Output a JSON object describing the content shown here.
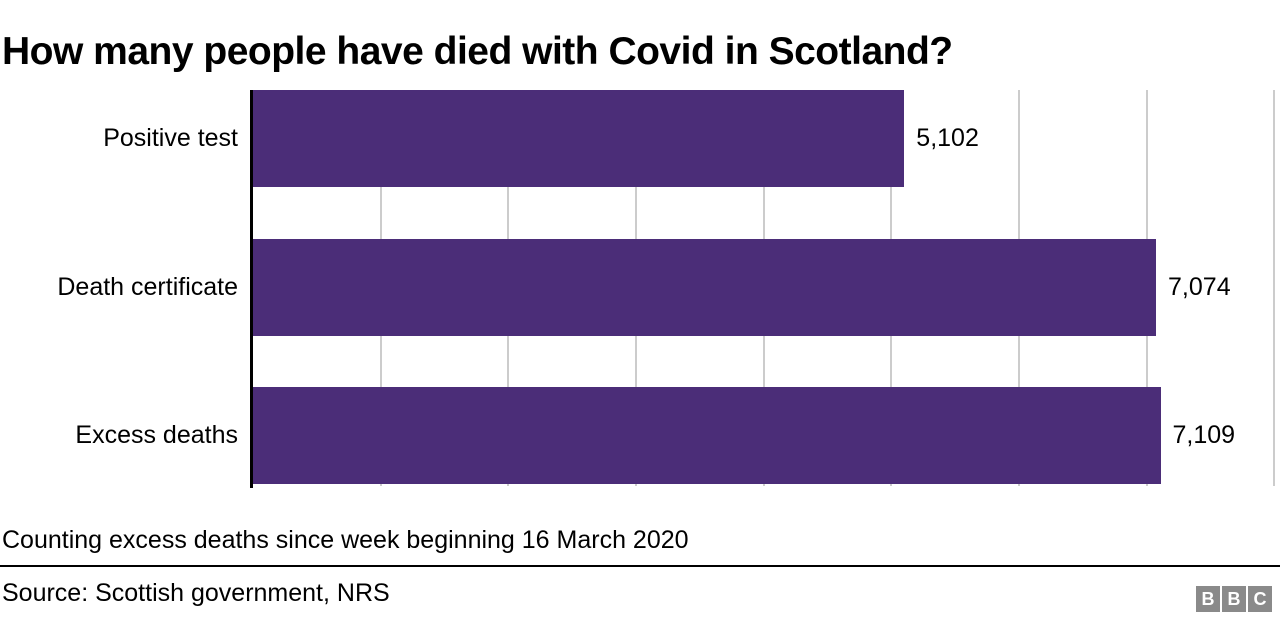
{
  "title": "How many people have died with Covid in Scotland?",
  "chart_data": {
    "type": "bar",
    "orientation": "horizontal",
    "title": "How many people have died with Covid in Scotland?",
    "categories": [
      "Positive test",
      "Death certificate",
      "Excess deaths"
    ],
    "values": [
      5102,
      7074,
      7109
    ],
    "value_labels": [
      "5,102",
      "7,074",
      "7,109"
    ],
    "xlim": [
      0,
      8045
    ],
    "gridline_values": [
      1000,
      2000,
      3000,
      4000,
      5000,
      6000,
      7000,
      8000
    ],
    "grid": true,
    "legend": "none",
    "bar_color": "#4b2d78",
    "gridline_color": "#cccccc",
    "axis_color": "#000000"
  },
  "footnote": "Counting excess deaths since week beginning 16 March 2020",
  "source": "Source: Scottish government, NRS",
  "logo": {
    "letters": [
      "B",
      "B",
      "C"
    ],
    "block_color": "#8a8a8a"
  }
}
